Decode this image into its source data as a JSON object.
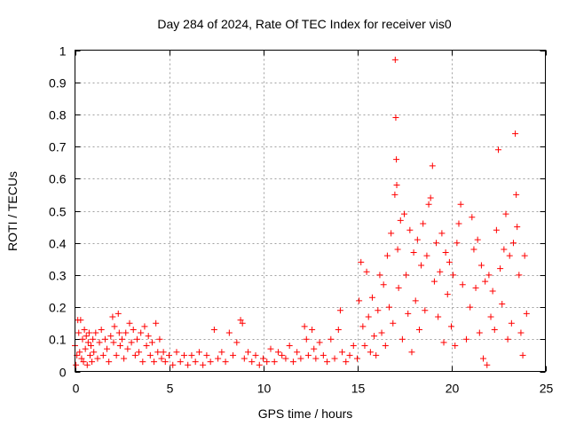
{
  "chart_data": {
    "type": "scatter",
    "title": "Day 284 of 2024, Rate Of TEC Index for receiver vis0",
    "xlabel": "GPS time / hours",
    "ylabel": "ROTI / TECUs",
    "xlim": [
      0,
      25
    ],
    "ylim": [
      0,
      1
    ],
    "xticks": [
      0,
      5,
      10,
      15,
      20,
      25
    ],
    "xtick_labels": [
      "0",
      "5",
      "10",
      "15",
      "20",
      "25"
    ],
    "yticks": [
      0,
      0.1,
      0.2,
      0.3,
      0.4,
      0.5,
      0.6,
      0.7,
      0.8,
      0.9,
      1
    ],
    "ytick_labels": [
      "0",
      "0.1",
      "0.2",
      "0.3",
      "0.4",
      "0.5",
      "0.6",
      "0.7",
      "0.8",
      "0.9",
      "1"
    ],
    "grid": true,
    "marker": "plus",
    "marker_color": "#ff0000",
    "series": [
      {
        "name": "ROTI",
        "points": [
          [
            0.0,
            0.08
          ],
          [
            0.05,
            0.02
          ],
          [
            0.1,
            0.05
          ],
          [
            0.15,
            0.16
          ],
          [
            0.2,
            0.12
          ],
          [
            0.25,
            0.06
          ],
          [
            0.3,
            0.16
          ],
          [
            0.35,
            0.04
          ],
          [
            0.4,
            0.1
          ],
          [
            0.45,
            0.03
          ],
          [
            0.5,
            0.13
          ],
          [
            0.55,
            0.07
          ],
          [
            0.6,
            0.11
          ],
          [
            0.65,
            0.02
          ],
          [
            0.7,
            0.09
          ],
          [
            0.75,
            0.12
          ],
          [
            0.8,
            0.05
          ],
          [
            0.85,
            0.08
          ],
          [
            0.9,
            0.03
          ],
          [
            0.95,
            0.1
          ],
          [
            1.0,
            0.06
          ],
          [
            1.1,
            0.12
          ],
          [
            1.2,
            0.04
          ],
          [
            1.3,
            0.09
          ],
          [
            1.4,
            0.13
          ],
          [
            1.5,
            0.05
          ],
          [
            1.6,
            0.1
          ],
          [
            1.7,
            0.07
          ],
          [
            1.8,
            0.03
          ],
          [
            1.9,
            0.11
          ],
          [
            2.0,
            0.17
          ],
          [
            2.05,
            0.09
          ],
          [
            2.1,
            0.14
          ],
          [
            2.2,
            0.05
          ],
          [
            2.3,
            0.18
          ],
          [
            2.35,
            0.12
          ],
          [
            2.4,
            0.08
          ],
          [
            2.5,
            0.1
          ],
          [
            2.6,
            0.04
          ],
          [
            2.7,
            0.12
          ],
          [
            2.8,
            0.07
          ],
          [
            2.9,
            0.15
          ],
          [
            3.0,
            0.09
          ],
          [
            3.1,
            0.13
          ],
          [
            3.2,
            0.05
          ],
          [
            3.3,
            0.1
          ],
          [
            3.4,
            0.06
          ],
          [
            3.5,
            0.12
          ],
          [
            3.6,
            0.03
          ],
          [
            3.7,
            0.14
          ],
          [
            3.8,
            0.08
          ],
          [
            3.9,
            0.11
          ],
          [
            4.0,
            0.05
          ],
          [
            4.1,
            0.09
          ],
          [
            4.2,
            0.03
          ],
          [
            4.3,
            0.15
          ],
          [
            4.4,
            0.06
          ],
          [
            4.5,
            0.1
          ],
          [
            4.6,
            0.04
          ],
          [
            4.7,
            0.06
          ],
          [
            4.8,
            0.03
          ],
          [
            5.0,
            0.05
          ],
          [
            5.2,
            0.02
          ],
          [
            5.4,
            0.06
          ],
          [
            5.6,
            0.03
          ],
          [
            5.8,
            0.05
          ],
          [
            6.0,
            0.02
          ],
          [
            6.2,
            0.05
          ],
          [
            6.4,
            0.03
          ],
          [
            6.6,
            0.06
          ],
          [
            6.8,
            0.02
          ],
          [
            7.0,
            0.05
          ],
          [
            7.2,
            0.03
          ],
          [
            7.4,
            0.13
          ],
          [
            7.6,
            0.04
          ],
          [
            7.8,
            0.06
          ],
          [
            8.0,
            0.03
          ],
          [
            8.2,
            0.12
          ],
          [
            8.4,
            0.05
          ],
          [
            8.6,
            0.09
          ],
          [
            8.8,
            0.16
          ],
          [
            8.9,
            0.15
          ],
          [
            9.0,
            0.04
          ],
          [
            9.2,
            0.06
          ],
          [
            9.4,
            0.03
          ],
          [
            9.6,
            0.05
          ],
          [
            9.8,
            0.02
          ],
          [
            10.0,
            0.04
          ],
          [
            10.2,
            0.03
          ],
          [
            10.4,
            0.07
          ],
          [
            10.6,
            0.03
          ],
          [
            10.8,
            0.06
          ],
          [
            11.0,
            0.05
          ],
          [
            11.2,
            0.04
          ],
          [
            11.4,
            0.08
          ],
          [
            11.6,
            0.03
          ],
          [
            11.8,
            0.06
          ],
          [
            12.0,
            0.04
          ],
          [
            12.2,
            0.14
          ],
          [
            12.3,
            0.1
          ],
          [
            12.4,
            0.05
          ],
          [
            12.6,
            0.13
          ],
          [
            12.7,
            0.07
          ],
          [
            12.8,
            0.04
          ],
          [
            13.0,
            0.09
          ],
          [
            13.2,
            0.05
          ],
          [
            13.4,
            0.03
          ],
          [
            13.6,
            0.1
          ],
          [
            13.8,
            0.04
          ],
          [
            14.0,
            0.13
          ],
          [
            14.1,
            0.19
          ],
          [
            14.2,
            0.06
          ],
          [
            14.4,
            0.03
          ],
          [
            14.6,
            0.05
          ],
          [
            14.8,
            0.08
          ],
          [
            15.0,
            0.04
          ],
          [
            15.1,
            0.22
          ],
          [
            15.2,
            0.34
          ],
          [
            15.3,
            0.14
          ],
          [
            15.4,
            0.08
          ],
          [
            15.5,
            0.31
          ],
          [
            15.6,
            0.17
          ],
          [
            15.7,
            0.06
          ],
          [
            15.8,
            0.23
          ],
          [
            15.9,
            0.11
          ],
          [
            16.0,
            0.05
          ],
          [
            16.1,
            0.19
          ],
          [
            16.2,
            0.3
          ],
          [
            16.3,
            0.12
          ],
          [
            16.4,
            0.27
          ],
          [
            16.5,
            0.08
          ],
          [
            16.6,
            0.36
          ],
          [
            16.7,
            0.2
          ],
          [
            16.8,
            0.43
          ],
          [
            16.9,
            0.15
          ],
          [
            17.0,
            0.55
          ],
          [
            17.02,
            0.97
          ],
          [
            17.05,
            0.79
          ],
          [
            17.08,
            0.66
          ],
          [
            17.1,
            0.58
          ],
          [
            17.15,
            0.38
          ],
          [
            17.2,
            0.26
          ],
          [
            17.3,
            0.47
          ],
          [
            17.4,
            0.1
          ],
          [
            17.5,
            0.49
          ],
          [
            17.6,
            0.3
          ],
          [
            17.7,
            0.18
          ],
          [
            17.8,
            0.44
          ],
          [
            17.9,
            0.06
          ],
          [
            18.0,
            0.37
          ],
          [
            18.1,
            0.22
          ],
          [
            18.2,
            0.41
          ],
          [
            18.3,
            0.13
          ],
          [
            18.4,
            0.33
          ],
          [
            18.5,
            0.46
          ],
          [
            18.6,
            0.19
          ],
          [
            18.7,
            0.36
          ],
          [
            18.8,
            0.52
          ],
          [
            18.9,
            0.54
          ],
          [
            19.0,
            0.64
          ],
          [
            19.1,
            0.28
          ],
          [
            19.2,
            0.4
          ],
          [
            19.3,
            0.17
          ],
          [
            19.4,
            0.31
          ],
          [
            19.5,
            0.43
          ],
          [
            19.6,
            0.09
          ],
          [
            19.7,
            0.37
          ],
          [
            19.8,
            0.24
          ],
          [
            19.9,
            0.34
          ],
          [
            20.0,
            0.14
          ],
          [
            20.1,
            0.3
          ],
          [
            20.2,
            0.08
          ],
          [
            20.3,
            0.4
          ],
          [
            20.4,
            0.46
          ],
          [
            20.5,
            0.52
          ],
          [
            20.6,
            0.27
          ],
          [
            20.8,
            0.1
          ],
          [
            21.0,
            0.2
          ],
          [
            21.1,
            0.48
          ],
          [
            21.2,
            0.38
          ],
          [
            21.3,
            0.26
          ],
          [
            21.4,
            0.41
          ],
          [
            21.5,
            0.12
          ],
          [
            21.6,
            0.33
          ],
          [
            21.7,
            0.04
          ],
          [
            21.8,
            0.28
          ],
          [
            21.9,
            0.02
          ],
          [
            22.0,
            0.3
          ],
          [
            22.1,
            0.17
          ],
          [
            22.2,
            0.25
          ],
          [
            22.3,
            0.13
          ],
          [
            22.4,
            0.44
          ],
          [
            22.5,
            0.69
          ],
          [
            22.6,
            0.32
          ],
          [
            22.7,
            0.21
          ],
          [
            22.8,
            0.38
          ],
          [
            22.9,
            0.49
          ],
          [
            23.0,
            0.1
          ],
          [
            23.1,
            0.36
          ],
          [
            23.2,
            0.15
          ],
          [
            23.3,
            0.4
          ],
          [
            23.4,
            0.74
          ],
          [
            23.45,
            0.55
          ],
          [
            23.5,
            0.45
          ],
          [
            23.6,
            0.3
          ],
          [
            23.7,
            0.12
          ],
          [
            23.8,
            0.05
          ],
          [
            23.9,
            0.36
          ],
          [
            24.0,
            0.18
          ]
        ]
      }
    ]
  }
}
